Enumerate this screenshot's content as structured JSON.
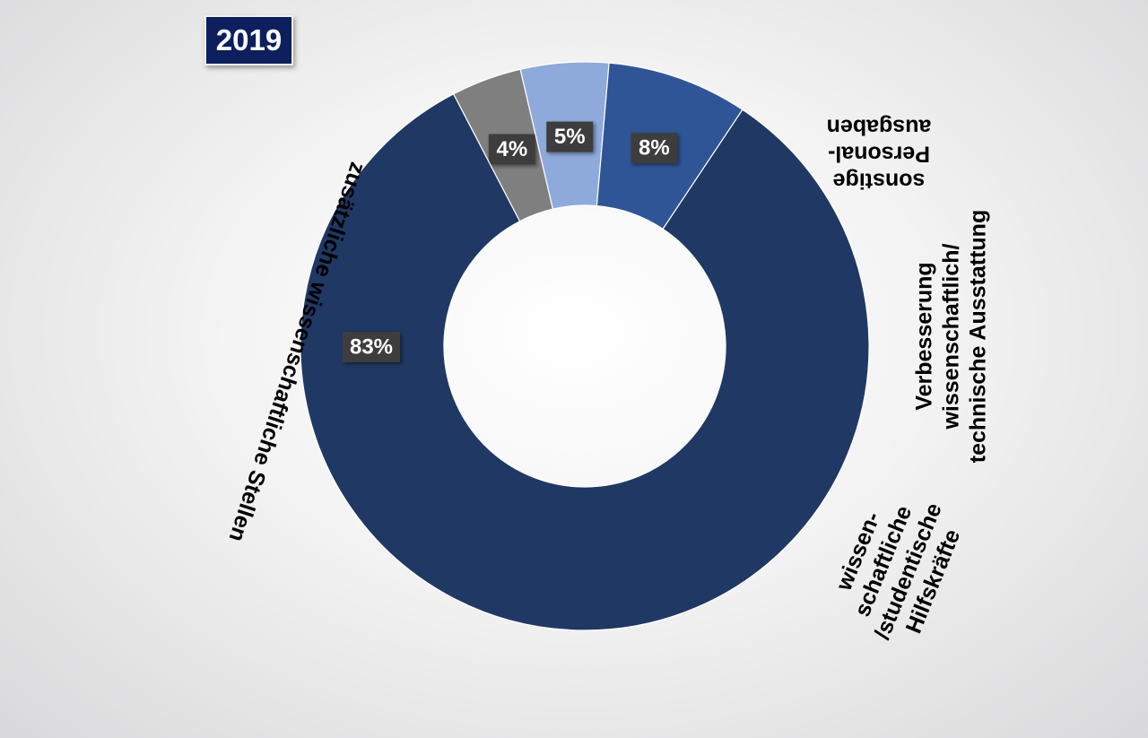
{
  "year_label": "2019",
  "colors": {
    "badge_bg": "#0d1f5c",
    "label_box": "#3c3c3c"
  },
  "chart_data": {
    "type": "pie",
    "variant": "donut",
    "title": "2019",
    "unit": "%",
    "slices": [
      {
        "category": "sonstige Personal-ausgaben",
        "lines": [
          "sonstige",
          "Personal-",
          "ausgaben"
        ],
        "value": 4,
        "label": "4%",
        "color": "#7f7f7f"
      },
      {
        "category": "Verbesserung wissenschaftlich/technische Ausstattung",
        "lines": [
          "Verbesserung",
          "wissenschaftlich/",
          "technische Ausstattung"
        ],
        "value": 5,
        "label": "5%",
        "color": "#8eaadb"
      },
      {
        "category": "wissen-schaftliche /studentische Hilfskräfte",
        "lines": [
          "wissen-",
          "schaftliche",
          "/studentische",
          "Hilfskräfte"
        ],
        "value": 8,
        "label": "8%",
        "color": "#2f5597"
      },
      {
        "category": "zusätzliche wissenschaftliche Stellen",
        "lines": [
          "zusätzliche wissenschaftliche Stellen"
        ],
        "value": 83,
        "label": "83%",
        "color": "#203864"
      }
    ]
  }
}
